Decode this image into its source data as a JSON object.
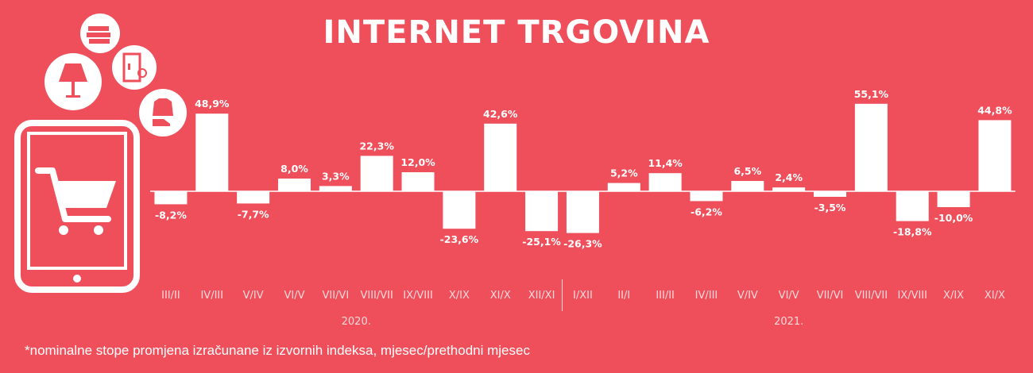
{
  "chart_data": {
    "type": "bar",
    "title": "INTERNET TRGOVINA",
    "footnote": "*nominalne stope promjena izračunane iz izvornih indeksa, mjesec/prethodni mjesec",
    "categories": [
      "III/II",
      "IV/III",
      "V/IV",
      "VI/V",
      "VII/VI",
      "VIII/VII",
      "IX/VIII",
      "X/IX",
      "XI/X",
      "XII/XI",
      "I/XII",
      "II/I",
      "III/II",
      "IV/III",
      "V/IV",
      "VI/V",
      "VII/VI",
      "VIII/VII",
      "IX/VIII",
      "X/IX",
      "XI/X"
    ],
    "values": [
      -8.2,
      48.9,
      -7.7,
      8.0,
      3.3,
      22.3,
      12.0,
      -23.6,
      42.6,
      -25.1,
      -26.3,
      5.2,
      11.4,
      -6.2,
      6.5,
      2.4,
      -3.5,
      55.1,
      -18.8,
      -10.0,
      44.8
    ],
    "value_labels": [
      "-8,2%",
      "48,9%",
      "-7,7%",
      "8,0%",
      "3,3%",
      "22,3%",
      "12,0%",
      "-23,6%",
      "42,6%",
      "-25,1%",
      "-26,3%",
      "5,2%",
      "11,4%",
      "-6,2%",
      "6,5%",
      "2,4%",
      "-3,5%",
      "55,1%",
      "-18,8%",
      "-10,0%",
      "44,8%"
    ],
    "year_groups": [
      {
        "label": "2020.",
        "start": 0,
        "end": 9
      },
      {
        "label": "2021.",
        "start": 10,
        "end": 20
      }
    ],
    "colors": {
      "background": "#ef4f5a",
      "bar": "#ffffff",
      "label": "#ffffff",
      "axis_label": "#fbd9dc"
    },
    "grid": false,
    "legend": "none"
  },
  "illustration": {
    "icons": [
      "books-icon",
      "lamp-icon",
      "fridge-icon",
      "clothes-icon",
      "tablet-icon",
      "shopping-cart-icon"
    ]
  }
}
